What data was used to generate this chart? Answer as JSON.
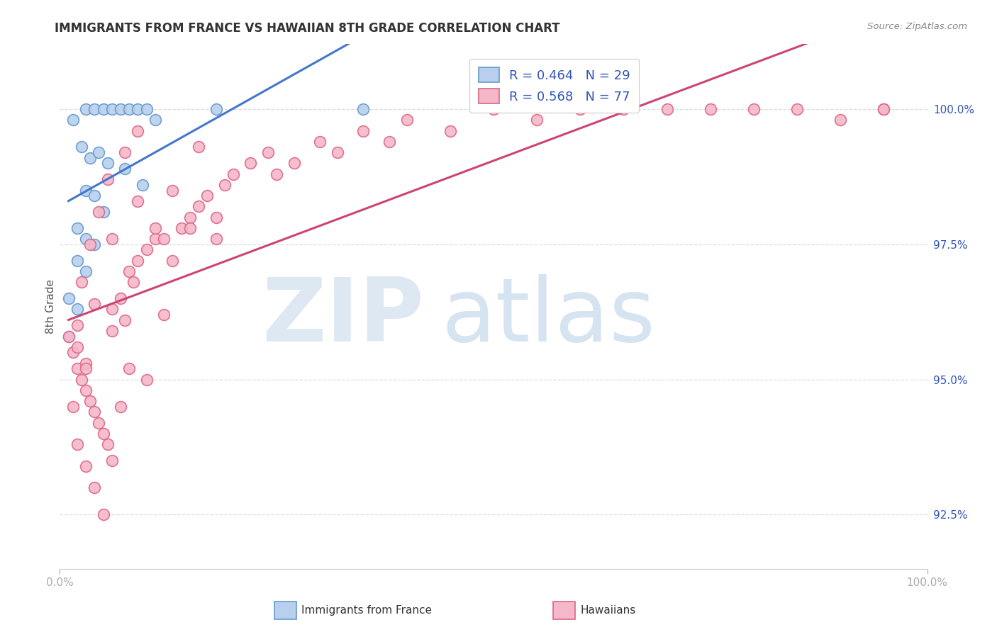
{
  "title": "IMMIGRANTS FROM FRANCE VS HAWAIIAN 8TH GRADE CORRELATION CHART",
  "source": "Source: ZipAtlas.com",
  "ylabel": "8th Grade",
  "y_ticks": [
    92.5,
    95.0,
    97.5,
    100.0
  ],
  "y_tick_labels": [
    "92.5%",
    "95.0%",
    "97.5%",
    "100.0%"
  ],
  "blue_R": 0.464,
  "blue_N": 29,
  "pink_R": 0.568,
  "pink_N": 77,
  "blue_face_color": "#b8d0ee",
  "pink_face_color": "#f5b8c8",
  "blue_edge_color": "#6699cc",
  "pink_edge_color": "#dd6688",
  "blue_line_color": "#4477cc",
  "pink_line_color": "#cc4477",
  "legend_text_color": "#3355bb",
  "watermark_zip_color": "#d8e4f0",
  "watermark_atlas_color": "#c5d8ec",
  "background_color": "#ffffff",
  "grid_color": "#dddddd",
  "title_color": "#333333",
  "source_color": "#888888",
  "ylabel_color": "#555555",
  "xlim": [
    0,
    100
  ],
  "ylim": [
    91.5,
    101.2
  ],
  "blue_points_x": [
    1.5,
    3.0,
    4.0,
    5.0,
    6.0,
    7.0,
    8.0,
    9.0,
    10.0,
    11.0,
    18.0,
    2.5,
    3.5,
    4.5,
    5.5,
    7.5,
    9.5,
    3.0,
    4.0,
    5.0,
    2.0,
    3.0,
    4.0,
    2.0,
    3.0,
    1.0,
    2.0,
    1.0,
    35.0
  ],
  "blue_points_y": [
    99.8,
    100.0,
    100.0,
    100.0,
    100.0,
    100.0,
    100.0,
    100.0,
    100.0,
    99.8,
    100.0,
    99.3,
    99.1,
    99.2,
    99.0,
    98.9,
    98.6,
    98.5,
    98.4,
    98.1,
    97.8,
    97.6,
    97.5,
    97.2,
    97.0,
    96.5,
    96.3,
    95.8,
    100.0
  ],
  "pink_points_x": [
    1.0,
    1.5,
    2.0,
    2.0,
    2.5,
    3.0,
    3.0,
    3.5,
    4.0,
    4.5,
    5.0,
    5.5,
    6.0,
    6.0,
    7.0,
    7.5,
    8.0,
    8.5,
    9.0,
    10.0,
    11.0,
    12.0,
    13.0,
    14.0,
    15.0,
    16.0,
    17.0,
    18.0,
    19.0,
    20.0,
    22.0,
    24.0,
    25.0,
    27.0,
    30.0,
    32.0,
    35.0,
    38.0,
    40.0,
    45.0,
    50.0,
    55.0,
    60.0,
    65.0,
    70.0,
    75.0,
    80.0,
    85.0,
    90.0,
    95.0,
    3.0,
    4.0,
    5.0,
    6.0,
    7.0,
    8.0,
    10.0,
    12.0,
    15.0,
    18.0,
    2.0,
    2.5,
    3.5,
    4.5,
    5.5,
    7.5,
    9.0,
    11.0,
    13.0,
    16.0,
    1.5,
    2.0,
    3.0,
    4.0,
    6.0,
    9.0,
    95.0
  ],
  "pink_points_y": [
    95.8,
    95.5,
    95.6,
    95.2,
    95.0,
    94.8,
    95.3,
    94.6,
    94.4,
    94.2,
    94.0,
    93.8,
    96.3,
    95.9,
    96.5,
    96.1,
    97.0,
    96.8,
    97.2,
    97.4,
    97.6,
    97.6,
    97.2,
    97.8,
    98.0,
    98.2,
    98.4,
    98.0,
    98.6,
    98.8,
    99.0,
    99.2,
    98.8,
    99.0,
    99.4,
    99.2,
    99.6,
    99.4,
    99.8,
    99.6,
    100.0,
    99.8,
    100.0,
    100.0,
    100.0,
    100.0,
    100.0,
    100.0,
    99.8,
    100.0,
    93.4,
    93.0,
    92.5,
    93.5,
    94.5,
    95.2,
    95.0,
    96.2,
    97.8,
    97.6,
    96.0,
    96.8,
    97.5,
    98.1,
    98.7,
    99.2,
    99.6,
    97.8,
    98.5,
    99.3,
    94.5,
    93.8,
    95.2,
    96.4,
    97.6,
    98.3,
    100.0
  ]
}
